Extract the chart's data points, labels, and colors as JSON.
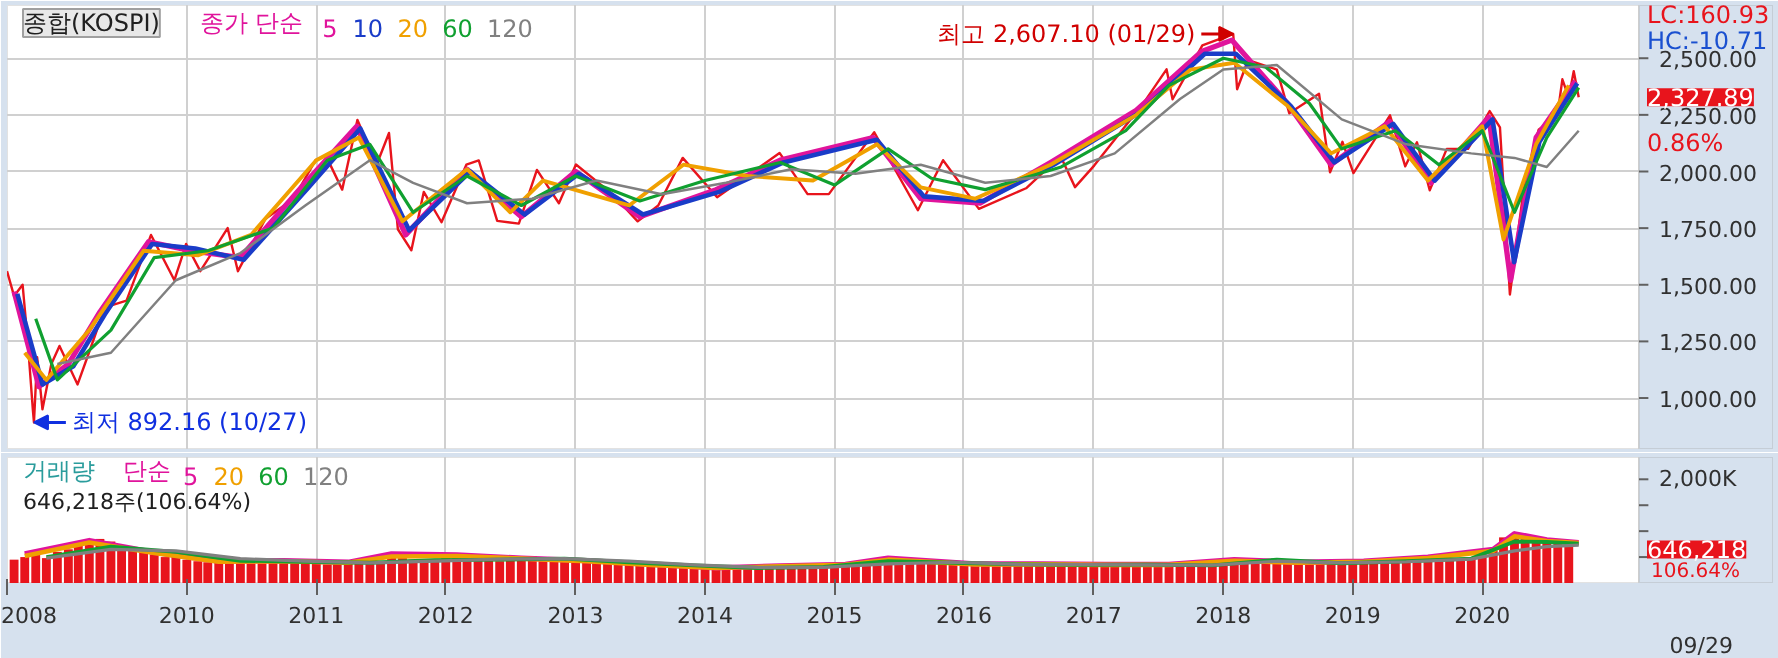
{
  "chart_data": [
    {
      "type": "line",
      "title": "종합(KOSPI)",
      "legend_title": "종가 단순",
      "legend": "top left",
      "grid": true,
      "tick_labels": "y",
      "xlim": [
        "2008-08-12",
        "2021-03-18"
      ],
      "xticks": [
        {
          "value": "2008-08-12",
          "label": null
        },
        {
          "value": "2010",
          "label": null
        },
        {
          "value": "2011",
          "label": null
        },
        {
          "value": "2012",
          "label": null
        },
        {
          "value": "2013",
          "label": null
        },
        {
          "value": "2014",
          "label": null
        },
        {
          "value": "2015",
          "label": null
        },
        {
          "value": "2016",
          "label": null
        },
        {
          "value": "2017",
          "label": null
        },
        {
          "value": "2018",
          "label": null
        },
        {
          "value": "2019",
          "label": null
        },
        {
          "value": "2020",
          "label": null
        }
      ],
      "ylim": [
        775,
        2735
      ],
      "yticks": [
        {
          "value": 1000,
          "label": "1,000.00"
        },
        {
          "value": 1250,
          "label": "1,250.00"
        },
        {
          "value": 1500,
          "label": "1,500.00"
        },
        {
          "value": 1750,
          "label": "1,750.00"
        },
        {
          "value": 2000,
          "label": "2,000.00"
        },
        {
          "value": 2250,
          "label": "2,250.00"
        },
        {
          "value": 2500,
          "label": "2,500.00"
        }
      ],
      "series": [
        {
          "color": "#e8141c",
          "x": [
            "2008-08-12",
            "2008-09-01",
            "2008-09-25",
            "2008-10-10",
            "2008-10-24",
            "2008-10-27",
            "2008-11-05",
            "2008-11-20",
            "2008-12-15",
            "2009-01-07",
            "2009-02-27",
            "2009-03-31",
            "2009-05-15",
            "2009-07-15",
            "2009-09-22",
            "2009-11-27",
            "2009-12-30",
            "2010-02-08",
            "2010-04-26",
            "2010-05-25",
            "2010-08-10",
            "2010-10-29",
            "2010-12-30",
            "2011-01-28",
            "2011-03-15",
            "2011-04-27",
            "2011-06-20",
            "2011-07-25",
            "2011-08-19",
            "2011-09-26",
            "2011-10-31",
            "2011-12-20",
            "2012-02-28",
            "2012-04-03",
            "2012-05-25",
            "2012-07-25",
            "2012-09-14",
            "2012-11-15",
            "2013-01-02",
            "2013-04-15",
            "2013-06-25",
            "2013-08-22",
            "2013-10-30",
            "2014-02-04",
            "2014-07-30",
            "2014-10-17",
            "2014-12-16",
            "2015-04-23",
            "2015-08-24",
            "2015-11-03",
            "2016-02-12",
            "2016-06-24",
            "2016-09-29",
            "2016-11-09",
            "2017-01-02",
            "2017-05-22",
            "2017-07-25",
            "2017-08-11",
            "2017-11-03",
            "2018-01-29",
            "2018-02-09",
            "2018-03-12",
            "2018-06-01",
            "2018-07-06",
            "2018-09-28",
            "2018-10-29",
            "2018-12-03",
            "2019-01-03",
            "2019-04-16",
            "2019-05-29",
            "2019-07-01",
            "2019-08-06",
            "2019-09-23",
            "2019-11-22",
            "2020-01-22",
            "2020-02-20",
            "2020-03-19",
            "2020-04-29",
            "2020-06-08",
            "2020-07-31",
            "2020-08-14",
            "2020-09-01",
            "2020-09-15",
            "2020-09-29"
          ],
          "values": [
            1560,
            1450,
            1500,
            1240,
            946,
            892.16,
            1180,
            950,
            1150,
            1230,
            1060,
            1200,
            1400,
            1430,
            1720,
            1520,
            1680,
            1560,
            1750,
            1560,
            1790,
            1880,
            2050,
            2070,
            1920,
            2228,
            2030,
            2170,
            1745,
            1652,
            1910,
            1776,
            2030,
            2049,
            1782,
            1770,
            2007,
            1860,
            2031,
            1900,
            1780,
            1850,
            2060,
            1886,
            2082,
            1900,
            1900,
            2173,
            1829,
            2050,
            1835,
            1926,
            2068,
            1931,
            2026,
            2304,
            2451,
            2319,
            2557,
            2607.1,
            2363,
            2492,
            2450,
            2257,
            2343,
            1996,
            2131,
            1993,
            2248,
            2023,
            2129,
            1917,
            2100,
            2100,
            2267,
            2195,
            1457,
            1947,
            2184,
            2249,
            2407,
            2326,
            2443,
            2327.89
          ]
        },
        {
          "name": "5",
          "color": "#e0149c",
          "x": [
            "2008-09-01",
            "2008-11-10",
            "2009-02-01",
            "2009-05-01",
            "2009-09-15",
            "2010-01-15",
            "2010-06-01",
            "2010-12-01",
            "2011-04-25",
            "2011-09-10",
            "2012-03-01",
            "2012-08-01",
            "2013-01-01",
            "2013-07-01",
            "2014-02-01",
            "2014-08-01",
            "2015-04-20",
            "2015-09-01",
            "2016-02-15",
            "2016-09-01",
            "2017-05-01",
            "2017-11-01",
            "2018-01-25",
            "2018-07-01",
            "2018-11-01",
            "2019-04-15",
            "2019-08-10",
            "2020-01-20",
            "2020-03-21",
            "2020-06-01",
            "2020-09-20"
          ],
          "values": [
            1470,
            1050,
            1150,
            1380,
            1690,
            1650,
            1620,
            1950,
            2200,
            1720,
            2010,
            1800,
            2000,
            1800,
            1920,
            2050,
            2150,
            1880,
            1860,
            2040,
            2270,
            2530,
            2580,
            2300,
            2030,
            2220,
            1950,
            2240,
            1520,
            2150,
            2400
          ]
        },
        {
          "name": "10",
          "color": "#1a3cc8",
          "x": [
            "2008-09-10",
            "2008-11-20",
            "2009-02-15",
            "2009-05-15",
            "2009-09-25",
            "2010-01-25",
            "2010-06-10",
            "2010-12-10",
            "2011-05-05",
            "2011-09-20",
            "2012-03-10",
            "2012-08-10",
            "2013-01-10",
            "2013-07-10",
            "2014-02-10",
            "2014-08-10",
            "2015-04-30",
            "2015-09-10",
            "2016-02-25",
            "2016-09-10",
            "2017-05-10",
            "2017-11-10",
            "2018-02-05",
            "2018-07-10",
            "2018-11-10",
            "2019-04-25",
            "2019-08-20",
            "2020-01-30",
            "2020-03-31",
            "2020-06-10",
            "2020-09-25"
          ],
          "values": [
            1460,
            1060,
            1140,
            1370,
            1680,
            1660,
            1610,
            1930,
            2190,
            1740,
            2000,
            1810,
            1990,
            1810,
            1910,
            2040,
            2140,
            1890,
            1870,
            2030,
            2260,
            2520,
            2520,
            2290,
            2040,
            2210,
            1960,
            2230,
            1600,
            2130,
            2390
          ]
        },
        {
          "name": "20",
          "color": "#f0a000",
          "x": [
            "2008-10-01",
            "2008-12-01",
            "2009-04-01",
            "2009-09-01",
            "2010-02-01",
            "2010-07-01",
            "2011-01-01",
            "2011-05-01",
            "2011-09-01",
            "2012-03-01",
            "2012-07-01",
            "2012-10-01",
            "2013-06-01",
            "2013-11-01",
            "2014-05-01",
            "2014-11-01",
            "2015-05-01",
            "2015-09-01",
            "2016-02-01",
            "2016-09-01",
            "2017-05-01",
            "2017-10-01",
            "2018-02-01",
            "2018-07-01",
            "2018-11-01",
            "2019-04-01",
            "2019-08-01",
            "2020-01-01",
            "2020-03-01",
            "2020-06-01",
            "2020-09-01"
          ],
          "values": [
            1200,
            1080,
            1300,
            1650,
            1630,
            1720,
            2050,
            2150,
            1780,
            2010,
            1820,
            1960,
            1850,
            2030,
            1980,
            1960,
            2120,
            1930,
            1880,
            2030,
            2250,
            2450,
            2480,
            2290,
            2080,
            2200,
            1960,
            2200,
            1700,
            2120,
            2380
          ]
        },
        {
          "name": "60",
          "color": "#10a030",
          "x": [
            "2008-11-01",
            "2009-01-01",
            "2009-06-01",
            "2009-10-01",
            "2010-03-01",
            "2010-09-01",
            "2011-02-01",
            "2011-06-01",
            "2011-10-01",
            "2012-03-01",
            "2012-08-01",
            "2013-01-01",
            "2013-07-01",
            "2014-01-01",
            "2014-08-01",
            "2015-01-01",
            "2015-06-01",
            "2015-10-01",
            "2016-03-01",
            "2016-10-01",
            "2017-04-01",
            "2017-08-01",
            "2018-01-01",
            "2018-05-01",
            "2018-09-01",
            "2018-12-01",
            "2019-05-01",
            "2019-09-01",
            "2020-01-01",
            "2020-04-01",
            "2020-07-01",
            "2020-09-29"
          ],
          "values": [
            1350,
            1080,
            1300,
            1620,
            1650,
            1750,
            2050,
            2120,
            1820,
            1980,
            1850,
            1980,
            1870,
            1960,
            2040,
            1940,
            2100,
            1970,
            1920,
            2020,
            2180,
            2380,
            2500,
            2460,
            2300,
            2100,
            2180,
            2030,
            2180,
            1820,
            2150,
            2370
          ]
        },
        {
          "name": "120",
          "color": "#808080",
          "x": [
            "2009-01-01",
            "2009-06-01",
            "2009-12-01",
            "2010-06-01",
            "2010-12-01",
            "2011-06-01",
            "2011-10-01",
            "2012-03-01",
            "2012-09-01",
            "2013-03-01",
            "2013-09-01",
            "2014-03-01",
            "2014-09-01",
            "2015-03-01",
            "2015-09-01",
            "2016-03-01",
            "2016-09-01",
            "2017-03-01",
            "2017-09-01",
            "2018-01-01",
            "2018-06-01",
            "2018-12-01",
            "2019-06-01",
            "2019-12-01",
            "2020-04-01",
            "2020-07-01",
            "2020-09-29"
          ],
          "values": [
            1150,
            1200,
            1520,
            1640,
            1850,
            2050,
            1950,
            1860,
            1880,
            1960,
            1900,
            1950,
            2010,
            1990,
            2030,
            1950,
            1980,
            2080,
            2320,
            2450,
            2470,
            2230,
            2120,
            2080,
            2060,
            2020,
            2180
          ]
        }
      ],
      "annotations": [
        {
          "text": "최고 2,607.10 (01/29)",
          "x": "2018-01-29",
          "y": 2607.1
        },
        {
          "text": "최저 892.16 (10/27)",
          "x": "2008-10-27",
          "y": 892.16
        },
        "LC:160.93",
        "HC:-10.71",
        {
          "text": "2,327.89",
          "x": "2020-09-29",
          "y": 2327.89
        },
        "0.86%"
      ]
    },
    {
      "type": "bar",
      "title": "거래량",
      "legend_title": "단순",
      "subtitle": "646,218주(106.64%)",
      "legend": "top left",
      "grid": "x",
      "xlim": [
        "2008-08-12",
        "2021-03-18"
      ],
      "xticks": [
        {
          "value": "2008-08-12",
          "label": "2008"
        },
        "2010",
        "2011",
        "2012",
        "2013",
        "2014",
        "2015",
        "2016",
        "2017",
        "2018",
        "2019",
        "2020"
      ],
      "ylim": [
        0,
        2430000
      ],
      "yticks": [
        {
          "value": 500000,
          "label": null
        },
        {
          "value": 1000000,
          "label": null
        },
        {
          "value": 1500000,
          "label": null
        },
        {
          "value": 2000000,
          "label": "2,000K"
        }
      ],
      "x": [
        "2008-09",
        "2008-10",
        "2008-11",
        "2008-12",
        "2009-01",
        "2009-02",
        "2009-03",
        "2009-04",
        "2009-05",
        "2009-06",
        "2009-07",
        "2009-08",
        "2009-09",
        "2009-10",
        "2009-11",
        "2009-12",
        "2010-01",
        "2010-02",
        "2010-03",
        "2010-04",
        "2010-05",
        "2010-06",
        "2010-07",
        "2010-08",
        "2010-09",
        "2010-10",
        "2010-11",
        "2010-12",
        "2011-01",
        "2011-02",
        "2011-03",
        "2011-04",
        "2011-05",
        "2011-06",
        "2011-07",
        "2011-08",
        "2011-09",
        "2011-10",
        "2011-11",
        "2011-12",
        "2012-01",
        "2012-02",
        "2012-03",
        "2012-04",
        "2012-05",
        "2012-06",
        "2012-07",
        "2012-08",
        "2012-09",
        "2012-10",
        "2012-11",
        "2012-12",
        "2013-01",
        "2013-02",
        "2013-03",
        "2013-04",
        "2013-05",
        "2013-06",
        "2013-07",
        "2013-08",
        "2013-09",
        "2013-10",
        "2013-11",
        "2013-12",
        "2014-01",
        "2014-02",
        "2014-03",
        "2014-04",
        "2014-05",
        "2014-06",
        "2014-07",
        "2014-08",
        "2014-09",
        "2014-10",
        "2014-11",
        "2014-12",
        "2015-01",
        "2015-02",
        "2015-03",
        "2015-04",
        "2015-05",
        "2015-06",
        "2015-07",
        "2015-08",
        "2015-09",
        "2015-10",
        "2015-11",
        "2015-12",
        "2016-01",
        "2016-02",
        "2016-03",
        "2016-04",
        "2016-05",
        "2016-06",
        "2016-07",
        "2016-08",
        "2016-09",
        "2016-10",
        "2016-11",
        "2016-12",
        "2017-01",
        "2017-02",
        "2017-03",
        "2017-04",
        "2017-05",
        "2017-06",
        "2017-07",
        "2017-08",
        "2017-09",
        "2017-10",
        "2017-11",
        "2017-12",
        "2018-01",
        "2018-02",
        "2018-03",
        "2018-04",
        "2018-05",
        "2018-06",
        "2018-07",
        "2018-08",
        "2018-09",
        "2018-10",
        "2018-11",
        "2018-12",
        "2019-01",
        "2019-02",
        "2019-03",
        "2019-04",
        "2019-05",
        "2019-06",
        "2019-07",
        "2019-08",
        "2019-09",
        "2019-10",
        "2019-11",
        "2019-12",
        "2020-01",
        "2020-02",
        "2020-03",
        "2020-04",
        "2020-05",
        "2020-06",
        "2020-07",
        "2020-08",
        "2020-09"
      ],
      "series": [
        {
          "color": "#e8141c",
          "values": [
            450000,
            500000,
            550000,
            480000,
            600000,
            650000,
            750000,
            800000,
            850000,
            800000,
            700000,
            650000,
            600000,
            550000,
            500000,
            500000,
            450000,
            420000,
            400000,
            400000,
            420000,
            400000,
            380000,
            380000,
            400000,
            420000,
            400000,
            380000,
            380000,
            360000,
            380000,
            380000,
            400000,
            380000,
            400000,
            520000,
            480000,
            450000,
            420000,
            420000,
            480000,
            520000,
            500000,
            460000,
            430000,
            420000,
            430000,
            460000,
            520000,
            500000,
            460000,
            440000,
            420000,
            400000,
            420000,
            400000,
            400000,
            360000,
            340000,
            340000,
            320000,
            320000,
            320000,
            310000,
            290000,
            280000,
            280000,
            270000,
            270000,
            280000,
            300000,
            320000,
            310000,
            310000,
            310000,
            320000,
            330000,
            350000,
            370000,
            420000,
            430000,
            450000,
            460000,
            420000,
            430000,
            400000,
            380000,
            360000,
            350000,
            360000,
            350000,
            370000,
            360000,
            350000,
            360000,
            360000,
            340000,
            340000,
            340000,
            330000,
            340000,
            350000,
            330000,
            340000,
            360000,
            370000,
            370000,
            340000,
            330000,
            320000,
            340000,
            360000,
            380000,
            420000,
            430000,
            440000,
            460000,
            460000,
            420000,
            380000,
            360000,
            380000,
            380000,
            360000,
            380000,
            400000,
            410000,
            420000,
            430000,
            420000,
            430000,
            480000,
            500000,
            480000,
            480000,
            460000,
            560000,
            620000,
            880000,
            900000,
            920000,
            820000,
            780000,
            820000,
            760000
          ]
        },
        {
          "type": "line",
          "name": "5",
          "color": "#e0149c",
          "x": [
            "2008-10",
            "2009-04",
            "2009-10",
            "2010-04",
            "2010-10",
            "2011-04",
            "2011-08",
            "2012-02",
            "2012-08",
            "2013-02",
            "2013-08",
            "2014-02",
            "2014-08",
            "2015-02",
            "2015-06",
            "2016-02",
            "2016-08",
            "2017-02",
            "2017-08",
            "2018-02",
            "2018-08",
            "2019-02",
            "2019-08",
            "2020-02",
            "2020-04",
            "2020-07",
            "2020-09-29"
          ],
          "values": [
            560000,
            820000,
            590000,
            420000,
            430000,
            400000,
            560000,
            540000,
            480000,
            430000,
            360000,
            290000,
            330000,
            360000,
            480000,
            370000,
            370000,
            360000,
            360000,
            450000,
            400000,
            420000,
            500000,
            650000,
            950000,
            830000,
            780000
          ]
        },
        {
          "type": "line",
          "name": "20",
          "color": "#f0a000",
          "x": [
            "2008-10",
            "2009-04",
            "2009-10",
            "2010-04",
            "2010-10",
            "2011-04",
            "2011-08",
            "2012-02",
            "2012-08",
            "2013-02",
            "2013-08",
            "2014-02",
            "2014-08",
            "2015-02",
            "2015-06",
            "2016-02",
            "2016-08",
            "2017-02",
            "2017-08",
            "2018-02",
            "2018-08",
            "2019-02",
            "2019-08",
            "2020-02",
            "2020-04",
            "2020-07",
            "2020-09-29"
          ],
          "values": [
            520000,
            780000,
            580000,
            410000,
            420000,
            390000,
            510000,
            520000,
            470000,
            420000,
            350000,
            290000,
            320000,
            350000,
            450000,
            360000,
            360000,
            350000,
            350000,
            430000,
            390000,
            410000,
            480000,
            620000,
            900000,
            810000,
            770000
          ]
        },
        {
          "type": "line",
          "name": "60",
          "color": "#10a030",
          "x": [
            "2008-12",
            "2009-06",
            "2009-12",
            "2010-06",
            "2010-12",
            "2011-06",
            "2011-12",
            "2012-06",
            "2012-12",
            "2013-06",
            "2013-12",
            "2014-06",
            "2014-12",
            "2015-06",
            "2015-12",
            "2016-06",
            "2016-12",
            "2017-06",
            "2017-12",
            "2018-06",
            "2018-12",
            "2019-06",
            "2019-12",
            "2020-04",
            "2020-07",
            "2020-09-29"
          ],
          "values": [
            500000,
            700000,
            600000,
            430000,
            410000,
            390000,
            440000,
            450000,
            470000,
            400000,
            340000,
            290000,
            310000,
            420000,
            390000,
            360000,
            350000,
            355000,
            340000,
            450000,
            380000,
            420000,
            470000,
            800000,
            790000,
            760000
          ]
        },
        {
          "type": "line",
          "name": "120",
          "color": "#808080",
          "x": [
            "2008-12",
            "2009-06",
            "2009-12",
            "2010-06",
            "2010-12",
            "2011-06",
            "2011-12",
            "2012-06",
            "2012-12",
            "2013-06",
            "2013-12",
            "2014-06",
            "2014-12",
            "2015-06",
            "2015-12",
            "2016-06",
            "2016-12",
            "2017-06",
            "2017-12",
            "2018-06",
            "2018-12",
            "2019-06",
            "2019-12",
            "2020-04",
            "2020-07",
            "2020-09-29"
          ],
          "values": [
            480000,
            650000,
            620000,
            470000,
            420000,
            390000,
            420000,
            460000,
            470000,
            420000,
            350000,
            300000,
            300000,
            370000,
            400000,
            360000,
            355000,
            350000,
            345000,
            420000,
            390000,
            410000,
            460000,
            620000,
            700000,
            730000
          ]
        }
      ],
      "annotations": [
        {
          "text": "646,218",
          "x": "2020-09-29",
          "y": 646218
        },
        "106.64%",
        "09/29"
      ]
    }
  ]
}
